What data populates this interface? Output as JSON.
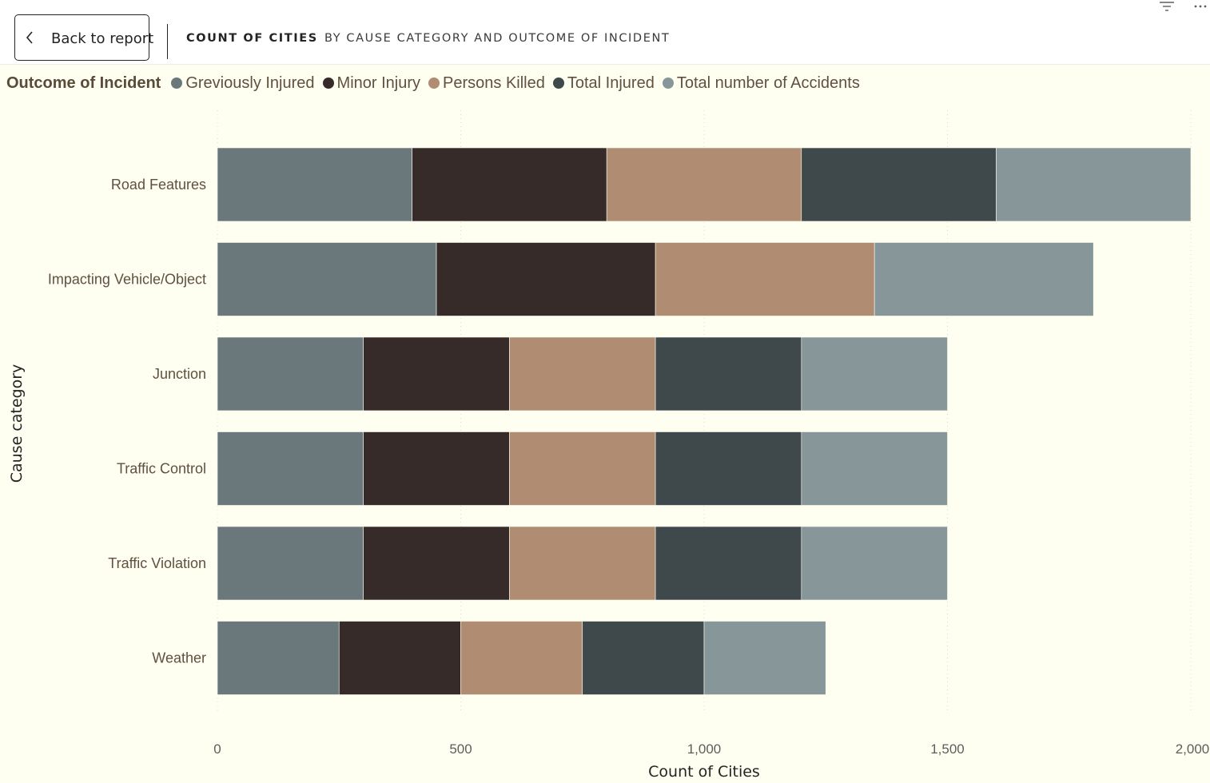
{
  "header": {
    "back_label": "Back to report",
    "title": "COUNT OF CITIES",
    "subtitle": "BY CAUSE CATEGORY AND OUTCOME OF INCIDENT",
    "icons": [
      "chevron-left-icon",
      "filter-icon",
      "more-options-icon"
    ]
  },
  "legend": {
    "title": "Outcome of Incident",
    "items": [
      {
        "label": "Greviously Injured",
        "color": "#6b787b"
      },
      {
        "label": "Minor Injury",
        "color": "#372b2a"
      },
      {
        "label": "Persons Killed",
        "color": "#b08c72"
      },
      {
        "label": "Total Injured",
        "color": "#3f484a"
      },
      {
        "label": "Total number of Accidents",
        "color": "#879799"
      }
    ]
  },
  "chart_data": {
    "type": "bar",
    "orientation": "horizontal",
    "stacked": true,
    "xlabel": "Count of Cities",
    "ylabel": "Cause category",
    "xlim": [
      0,
      2000
    ],
    "xticks": [
      0,
      500,
      1000,
      1500,
      2000
    ],
    "xtick_labels": [
      "0",
      "500",
      "1,000",
      "1,500",
      "2,000"
    ],
    "grid": "vertical dotted",
    "legend_position": "top-left",
    "categories": [
      "Road Features",
      "Impacting Vehicle/Object",
      "Junction",
      "Traffic Control",
      "Traffic Violation",
      "Weather"
    ],
    "series": [
      {
        "name": "Greviously Injured",
        "color": "#6b787b",
        "values": [
          400,
          450,
          300,
          300,
          300,
          250
        ]
      },
      {
        "name": "Minor Injury",
        "color": "#372b2a",
        "values": [
          400,
          450,
          300,
          300,
          300,
          250
        ]
      },
      {
        "name": "Persons Killed",
        "color": "#b08c72",
        "values": [
          400,
          450,
          300,
          300,
          300,
          250
        ]
      },
      {
        "name": "Total Injured",
        "color": "#3f484a",
        "values": [
          400,
          0,
          300,
          300,
          300,
          250
        ]
      },
      {
        "name": "Total number of Accidents",
        "color": "#879799",
        "values": [
          400,
          450,
          300,
          300,
          300,
          250
        ]
      }
    ]
  }
}
